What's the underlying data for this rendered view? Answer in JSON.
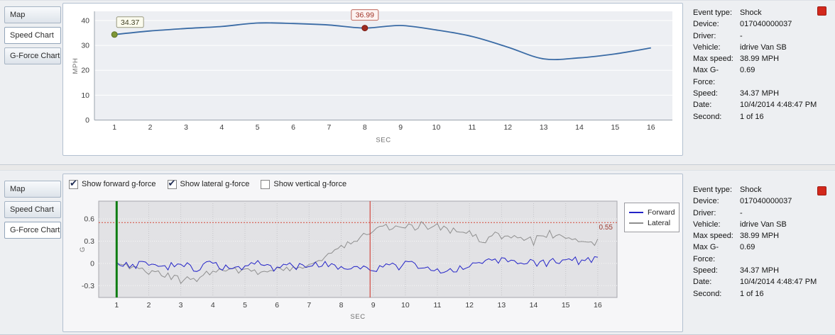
{
  "tabs": {
    "items": [
      "Map",
      "Speed Chart",
      "G-Force Chart"
    ],
    "top_selected": 1,
    "bottom_selected": 2
  },
  "info_panel": {
    "rows": [
      {
        "label": "Event type:",
        "value": "Shock"
      },
      {
        "label": "Device:",
        "value": "017040000037"
      },
      {
        "label": "Driver:",
        "value": "-"
      },
      {
        "label": "Vehicle:",
        "value": "idrive Van SB"
      },
      {
        "label": "Max speed:",
        "value": "38.99 MPH"
      },
      {
        "label": "Max G-Force:",
        "value": "0.69"
      },
      {
        "label": "Speed:",
        "value": "34.37 MPH"
      },
      {
        "label": "Date:",
        "value": "10/4/2014 4:48:47 PM"
      },
      {
        "label": "Second:",
        "value": "1 of 16"
      }
    ]
  },
  "gforce_controls": {
    "checkboxes": [
      {
        "label": "Show forward g-force",
        "checked": true
      },
      {
        "label": "Show lateral g-force",
        "checked": true
      },
      {
        "label": "Show vertical g-force",
        "checked": false
      }
    ]
  },
  "chart_data": [
    {
      "type": "line",
      "name": "speed-chart",
      "title": "Speed Chart",
      "xlabel": "SEC",
      "ylabel": "MPH",
      "x": [
        1,
        2,
        3,
        4,
        5,
        6,
        7,
        8,
        9,
        10,
        11,
        12,
        13,
        14,
        15,
        16
      ],
      "values": [
        34.37,
        35.8,
        36.8,
        37.6,
        38.99,
        38.8,
        38.2,
        36.99,
        38.0,
        36.2,
        33.6,
        29.3,
        24.6,
        25.0,
        26.6,
        29.0
      ],
      "xlim": [
        0.44,
        16.6
      ],
      "ylim": [
        0,
        43.7
      ],
      "yticks": [
        0,
        10,
        20,
        30,
        40
      ],
      "grid": true,
      "line_color": "#3a6ba5",
      "plot_bg": "#edeff3",
      "grid_color": "#ffffff",
      "markers": [
        {
          "name": "start-marker",
          "x": 1,
          "y": 34.37,
          "label": "34.37",
          "dot_color": "#7e9636",
          "dot_stroke": "#5d7226",
          "box_bg": "#fbfbee",
          "box_border": "#99997f",
          "text_color": "#3f3f24"
        },
        {
          "name": "shock-marker",
          "x": 8,
          "y": 36.99,
          "label": "36.99",
          "dot_color": "#9e2b20",
          "dot_stroke": "#7a1f16",
          "box_bg": "#fdf3f1",
          "box_border": "#bf685c",
          "text_color": "#9e3125"
        }
      ]
    },
    {
      "type": "line",
      "name": "gforce-chart",
      "title": "G-Force Chart",
      "xlabel": "SEC",
      "ylabel": "G",
      "xticks": [
        1,
        2,
        3,
        4,
        5,
        6,
        7,
        8,
        9,
        10,
        11,
        12,
        13,
        14,
        15,
        16
      ],
      "xlim": [
        0.44,
        16.6
      ],
      "ylim": [
        -0.46,
        0.84
      ],
      "yticks": [
        -0.3,
        0,
        0.3,
        0.6
      ],
      "plot_bg": "#e2e2e5",
      "grid_color_h": "#f7f7f7",
      "grid_color_v": "#c5c5c9",
      "border_color": "#a7a7ad",
      "threshold": {
        "y": 0.55,
        "label": "0.55",
        "color": "#d4493a",
        "label_color": "#9c392d"
      },
      "vlines": [
        {
          "name": "current-second-line",
          "x": 1,
          "color": "#0e7d12",
          "width": 3
        },
        {
          "name": "event-moment-line",
          "x": 8.9,
          "color": "#ce2b20",
          "width": 1
        }
      ],
      "legend_position": "right",
      "series": [
        {
          "name": "Forward",
          "color": "#2424c8",
          "noise_amp": 0.05,
          "anchors_x": [
            1,
            1.5,
            2,
            2.5,
            3,
            3.5,
            4,
            4.5,
            5,
            5.5,
            6,
            6.5,
            7,
            7.5,
            8,
            8.5,
            9,
            9.5,
            10,
            10.5,
            11,
            11.5,
            12,
            12.5,
            13,
            13.5,
            14,
            14.5,
            15,
            15.5,
            16
          ],
          "anchors_y": [
            0,
            -0.03,
            0.02,
            -0.04,
            -0.02,
            -0.05,
            -0.02,
            -0.06,
            -0.03,
            -0.02,
            -0.05,
            -0.02,
            -0.04,
            -0.03,
            -0.06,
            -0.04,
            -0.08,
            -0.04,
            -0.02,
            -0.06,
            -0.1,
            -0.05,
            -0.03,
            0.02,
            0.04,
            -0.02,
            0.03,
            0,
            0.03,
            0.02,
            0.05
          ]
        },
        {
          "name": "Lateral",
          "color": "#8f8f8f",
          "noise_amp": 0.035,
          "anchors_x": [
            1,
            1.5,
            2,
            2.5,
            3,
            3.5,
            4,
            4.5,
            5,
            5.5,
            6,
            6.5,
            7,
            7.5,
            8,
            8.5,
            9,
            9.5,
            10,
            10.5,
            11,
            11.5,
            12,
            12.5,
            13,
            13.5,
            14,
            14.5,
            15,
            15.5,
            16
          ],
          "anchors_y": [
            -0.02,
            -0.06,
            -0.1,
            -0.15,
            -0.22,
            -0.19,
            -0.12,
            -0.09,
            -0.1,
            -0.12,
            -0.08,
            -0.06,
            -0.02,
            0.08,
            0.22,
            0.28,
            0.42,
            0.48,
            0.5,
            0.54,
            0.48,
            0.42,
            0.38,
            0.32,
            0.4,
            0.32,
            0.3,
            0.4,
            0.34,
            0.32,
            0.28
          ]
        }
      ]
    }
  ]
}
